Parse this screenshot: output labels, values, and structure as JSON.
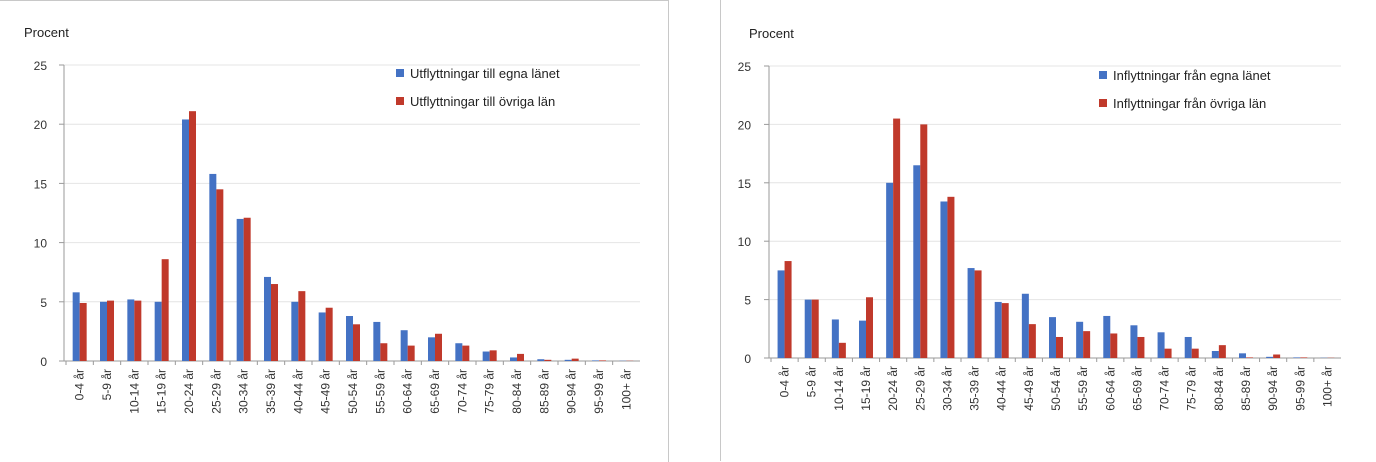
{
  "chart_data": [
    {
      "type": "bar",
      "ylabel": "Procent",
      "ylim": [
        0,
        25
      ],
      "yticks": [
        0,
        5,
        10,
        15,
        20,
        25
      ],
      "grid": true,
      "legend_position": "top-right",
      "categories": [
        "0-4 år",
        "5-9 år",
        "10-14 år",
        "15-19 år",
        "20-24 år",
        "25-29 år",
        "30-34 år",
        "35-39 år",
        "40-44 år",
        "45-49 år",
        "50-54 år",
        "55-59 år",
        "60-64 år",
        "65-69 år",
        "70-74 år",
        "75-79 år",
        "80-84 år",
        "85-89 år",
        "90-94 år",
        "95-99 år",
        "100+ år"
      ],
      "series": [
        {
          "name": "Utflyttningar till egna länet",
          "color": "#4472c4",
          "values": [
            5.8,
            5.0,
            5.2,
            5.0,
            20.4,
            15.8,
            12.0,
            7.1,
            5.0,
            4.1,
            3.8,
            3.3,
            2.6,
            2.0,
            1.5,
            0.8,
            0.3,
            0.15,
            0.1,
            0.05,
            0.02
          ]
        },
        {
          "name": "Utflyttningar till övriga län",
          "color": "#c0392b",
          "values": [
            4.9,
            5.1,
            5.1,
            8.6,
            21.1,
            14.5,
            12.1,
            6.5,
            5.9,
            4.5,
            3.1,
            1.5,
            1.3,
            2.3,
            1.3,
            0.9,
            0.6,
            0.1,
            0.2,
            0.05,
            0.02
          ]
        }
      ]
    },
    {
      "type": "bar",
      "ylabel": "Procent",
      "ylim": [
        0,
        25
      ],
      "yticks": [
        0,
        5,
        10,
        15,
        20,
        25
      ],
      "grid": true,
      "legend_position": "top-right",
      "categories": [
        "0-4 år",
        "5-9 år",
        "10-14 år",
        "15-19 år",
        "20-24 år",
        "25-29 år",
        "30-34 år",
        "35-39 år",
        "40-44 år",
        "45-49 år",
        "50-54 år",
        "55-59 år",
        "60-64 år",
        "65-69 år",
        "70-74 år",
        "75-79 år",
        "80-84 år",
        "85-89 år",
        "90-94 år",
        "95-99 år",
        "100+ år"
      ],
      "series": [
        {
          "name": "Inflyttningar från egna länet",
          "color": "#4472c4",
          "values": [
            7.5,
            5.0,
            3.3,
            3.2,
            15.0,
            16.5,
            13.4,
            7.7,
            4.8,
            5.5,
            3.5,
            3.1,
            3.6,
            2.8,
            2.2,
            1.8,
            0.6,
            0.4,
            0.1,
            0.05,
            0.02
          ]
        },
        {
          "name": "Inflyttningar från övriga län",
          "color": "#c0392b",
          "values": [
            8.3,
            5.0,
            1.3,
            5.2,
            20.5,
            20.0,
            13.8,
            7.5,
            4.7,
            2.9,
            1.8,
            2.3,
            2.1,
            1.8,
            0.8,
            0.8,
            1.1,
            0.05,
            0.3,
            0.05,
            0.02
          ]
        }
      ]
    }
  ]
}
